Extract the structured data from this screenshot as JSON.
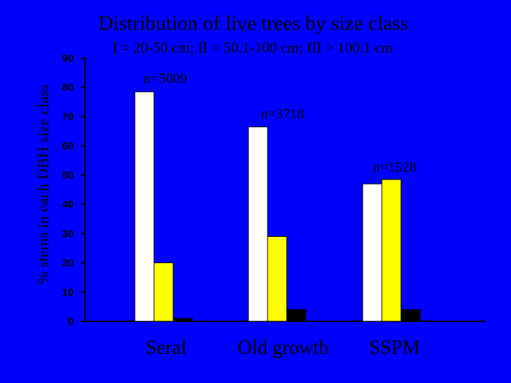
{
  "chart_data": {
    "type": "bar",
    "title": "Distribution of live trees by size class",
    "subtitle": "I = 20-50 cm; II = 50.1-100 cm; III > 100.1 cm",
    "ylabel": "% stems in each DBH size class",
    "xlabel": "",
    "ylim": [
      0,
      90
    ],
    "yticks": [
      0,
      10,
      20,
      30,
      40,
      50,
      60,
      70,
      80,
      90
    ],
    "grid": false,
    "legend": "none",
    "categories": [
      "Seral",
      "Old growth",
      "SSPM"
    ],
    "series": [
      {
        "color": "#ffffff",
        "values": [
          78.5,
          66.5,
          47
        ]
      },
      {
        "color": "#ffff00",
        "values": [
          20,
          29,
          48.5
        ]
      },
      {
        "color": "#000000",
        "values": [
          1,
          4,
          4
        ]
      }
    ],
    "annotations": [
      "n=5009",
      "n=3718",
      "n=1528"
    ]
  }
}
